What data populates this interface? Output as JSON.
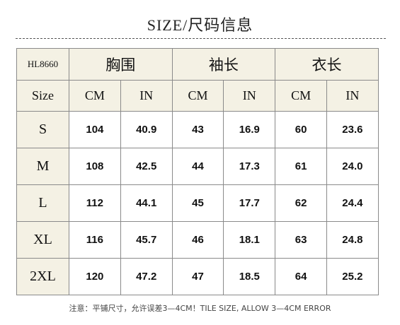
{
  "title": "SIZE/尺码信息",
  "table": {
    "code": "HL8660",
    "groups": [
      "胸围",
      "袖长",
      "衣长"
    ],
    "size_label": "Size",
    "units": [
      "CM",
      "IN",
      "CM",
      "IN",
      "CM",
      "IN"
    ],
    "rows": [
      {
        "size": "S",
        "values": [
          "104",
          "40.9",
          "43",
          "16.9",
          "60",
          "23.6"
        ]
      },
      {
        "size": "M",
        "values": [
          "108",
          "42.5",
          "44",
          "17.3",
          "61",
          "24.0"
        ]
      },
      {
        "size": "L",
        "values": [
          "112",
          "44.1",
          "45",
          "17.7",
          "62",
          "24.4"
        ]
      },
      {
        "size": "XL",
        "values": [
          "116",
          "45.7",
          "46",
          "18.1",
          "63",
          "24.8"
        ]
      },
      {
        "size": "2XL",
        "values": [
          "120",
          "47.2",
          "47",
          "18.5",
          "64",
          "25.2"
        ]
      }
    ]
  },
  "note": "注意：平铺尺寸，允许误差3—4CM！TILE SIZE, ALLOW 3—4CM ERROR"
}
